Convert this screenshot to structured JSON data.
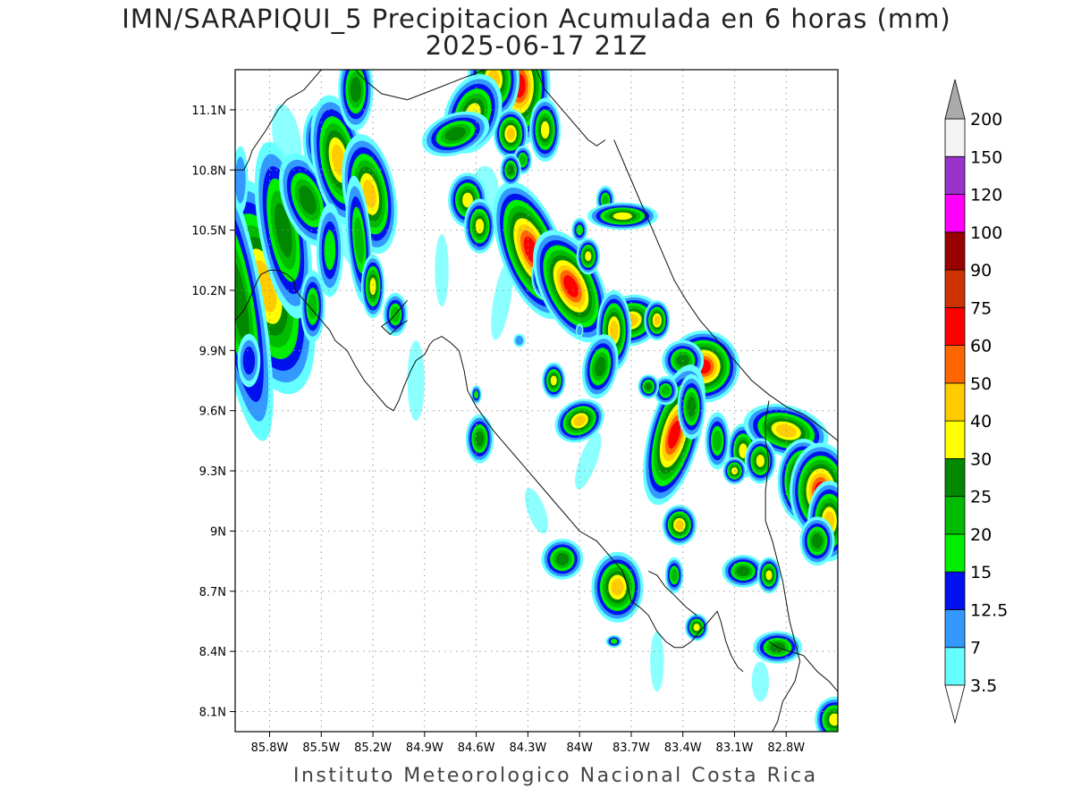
{
  "title": {
    "line1": "IMN/SARAPIQUI_5 Precipitacion Acumulada en 6 horas (mm)",
    "line2": "2025-06-17 21Z"
  },
  "footer": "Instituto Meteorologico Nacional Costa Rica",
  "map": {
    "lon_range": [
      -86.0,
      -82.5
    ],
    "lat_range": [
      8.0,
      11.3
    ],
    "lon_ticks": [
      {
        "value": -85.8,
        "label": "85.8W"
      },
      {
        "value": -85.5,
        "label": "85.5W"
      },
      {
        "value": -85.2,
        "label": "85.2W"
      },
      {
        "value": -84.9,
        "label": "84.9W"
      },
      {
        "value": -84.6,
        "label": "84.6W"
      },
      {
        "value": -84.3,
        "label": "84.3W"
      },
      {
        "value": -84.0,
        "label": "84W"
      },
      {
        "value": -83.7,
        "label": "83.7W"
      },
      {
        "value": -83.4,
        "label": "83.4W"
      },
      {
        "value": -83.1,
        "label": "83.1W"
      },
      {
        "value": -82.8,
        "label": "82.8W"
      }
    ],
    "lat_ticks": [
      {
        "value": 8.1,
        "label": "8.1N"
      },
      {
        "value": 8.4,
        "label": "8.4N"
      },
      {
        "value": 8.7,
        "label": "8.7N"
      },
      {
        "value": 9.0,
        "label": "9N"
      },
      {
        "value": 9.3,
        "label": "9.3N"
      },
      {
        "value": 9.6,
        "label": "9.6N"
      },
      {
        "value": 9.9,
        "label": "9.9N"
      },
      {
        "value": 10.2,
        "label": "10.2N"
      },
      {
        "value": 10.5,
        "label": "10.5N"
      },
      {
        "value": 10.8,
        "label": "10.8N"
      },
      {
        "value": 11.1,
        "label": "11.1N"
      }
    ],
    "grid": true
  },
  "legend": {
    "labels": [
      "3.5",
      "7",
      "12.5",
      "15",
      "20",
      "25",
      "30",
      "40",
      "50",
      "60",
      "75",
      "90",
      "100",
      "120",
      "150",
      "200"
    ],
    "colors": [
      "#66ffff",
      "#3399ff",
      "#0011ee",
      "#00ee00",
      "#00bb00",
      "#008800",
      "#ffff00",
      "#ffcc00",
      "#ff6600",
      "#ff0000",
      "#cc3300",
      "#990000",
      "#ff00ff",
      "#9933cc",
      "#f4f4f4",
      "#aaaaaa"
    ]
  },
  "precip_cells": [
    {
      "lon": -85.83,
      "lat": 10.22,
      "rx": 0.1,
      "ry": 0.22,
      "rot": -15,
      "level": 40
    },
    {
      "lon": -85.98,
      "lat": 10.15,
      "rx": 0.07,
      "ry": 0.35,
      "rot": -10,
      "level": 25
    },
    {
      "lon": -85.72,
      "lat": 10.5,
      "rx": 0.07,
      "ry": 0.22,
      "rot": -10,
      "level": 25
    },
    {
      "lon": -85.97,
      "lat": 10.75,
      "rx": 0.04,
      "ry": 0.15,
      "rot": 0,
      "level": 7
    },
    {
      "lon": -85.92,
      "lat": 9.85,
      "rx": 0.05,
      "ry": 0.1,
      "rot": 0,
      "level": 12.5
    },
    {
      "lon": -85.58,
      "lat": 10.65,
      "rx": 0.07,
      "ry": 0.12,
      "rot": -20,
      "level": 25
    },
    {
      "lon": -85.5,
      "lat": 10.95,
      "rx": 0.06,
      "ry": 0.1,
      "rot": 0,
      "level": 20
    },
    {
      "lon": -85.4,
      "lat": 10.85,
      "rx": 0.06,
      "ry": 0.13,
      "rot": -10,
      "level": 40
    },
    {
      "lon": -85.22,
      "lat": 10.68,
      "rx": 0.06,
      "ry": 0.12,
      "rot": -10,
      "level": 40
    },
    {
      "lon": -85.3,
      "lat": 11.2,
      "rx": 0.05,
      "ry": 0.1,
      "rot": 0,
      "level": 25
    },
    {
      "lon": -85.28,
      "lat": 10.45,
      "rx": 0.04,
      "ry": 0.18,
      "rot": -5,
      "level": 20
    },
    {
      "lon": -85.2,
      "lat": 10.22,
      "rx": 0.03,
      "ry": 0.07,
      "rot": 0,
      "level": 30
    },
    {
      "lon": -85.07,
      "lat": 10.08,
      "rx": 0.04,
      "ry": 0.06,
      "rot": 0,
      "level": 20
    },
    {
      "lon": -85.55,
      "lat": 10.12,
      "rx": 0.04,
      "ry": 0.1,
      "rot": 0,
      "level": 20
    },
    {
      "lon": -85.45,
      "lat": 10.4,
      "rx": 0.05,
      "ry": 0.15,
      "rot": 0,
      "level": 15
    },
    {
      "lon": -84.35,
      "lat": 11.22,
      "rx": 0.06,
      "ry": 0.1,
      "rot": 0,
      "level": 60
    },
    {
      "lon": -84.5,
      "lat": 11.25,
      "rx": 0.06,
      "ry": 0.08,
      "rot": 0,
      "level": 40
    },
    {
      "lon": -84.4,
      "lat": 10.98,
      "rx": 0.04,
      "ry": 0.05,
      "rot": 0,
      "level": 40
    },
    {
      "lon": -84.62,
      "lat": 11.08,
      "rx": 0.07,
      "ry": 0.09,
      "rot": 20,
      "level": 30
    },
    {
      "lon": -84.72,
      "lat": 10.98,
      "rx": 0.1,
      "ry": 0.05,
      "rot": -20,
      "level": 25
    },
    {
      "lon": -84.2,
      "lat": 11.0,
      "rx": 0.04,
      "ry": 0.07,
      "rot": 0,
      "level": 30
    },
    {
      "lon": -84.33,
      "lat": 10.85,
      "rx": 0.03,
      "ry": 0.04,
      "rot": 0,
      "level": 20
    },
    {
      "lon": -84.65,
      "lat": 10.65,
      "rx": 0.05,
      "ry": 0.06,
      "rot": 0,
      "level": 30
    },
    {
      "lon": -84.58,
      "lat": 10.52,
      "rx": 0.04,
      "ry": 0.06,
      "rot": 0,
      "level": 30
    },
    {
      "lon": -84.45,
      "lat": 10.55,
      "rx": 0.03,
      "ry": 0.05,
      "rot": 0,
      "level": 20
    },
    {
      "lon": -84.28,
      "lat": 10.4,
      "rx": 0.06,
      "ry": 0.12,
      "rot": -20,
      "level": 60
    },
    {
      "lon": -84.19,
      "lat": 10.27,
      "rx": 0.03,
      "ry": 0.04,
      "rot": 0,
      "level": 60
    },
    {
      "lon": -84.05,
      "lat": 10.22,
      "rx": 0.06,
      "ry": 0.1,
      "rot": -25,
      "level": 60
    },
    {
      "lon": -83.95,
      "lat": 10.37,
      "rx": 0.03,
      "ry": 0.04,
      "rot": 0,
      "level": 30
    },
    {
      "lon": -84.0,
      "lat": 10.5,
      "rx": 0.03,
      "ry": 0.04,
      "rot": 0,
      "level": 15
    },
    {
      "lon": -83.85,
      "lat": 10.65,
      "rx": 0.03,
      "ry": 0.04,
      "rot": 0,
      "level": 20
    },
    {
      "lon": -83.75,
      "lat": 10.57,
      "rx": 0.09,
      "ry": 0.03,
      "rot": 0,
      "level": 30
    },
    {
      "lon": -83.7,
      "lat": 10.05,
      "rx": 0.07,
      "ry": 0.05,
      "rot": -20,
      "level": 40
    },
    {
      "lon": -83.8,
      "lat": 10.0,
      "rx": 0.04,
      "ry": 0.08,
      "rot": 0,
      "level": 40
    },
    {
      "lon": -83.55,
      "lat": 10.05,
      "rx": 0.03,
      "ry": 0.04,
      "rot": 0,
      "level": 40
    },
    {
      "lon": -83.88,
      "lat": 9.82,
      "rx": 0.05,
      "ry": 0.08,
      "rot": 10,
      "level": 25
    },
    {
      "lon": -83.28,
      "lat": 9.82,
      "rx": 0.07,
      "ry": 0.06,
      "rot": 0,
      "level": 60
    },
    {
      "lon": -83.4,
      "lat": 9.85,
      "rx": 0.06,
      "ry": 0.05,
      "rot": 0,
      "level": 25
    },
    {
      "lon": -83.45,
      "lat": 9.48,
      "rx": 0.05,
      "ry": 0.12,
      "rot": 15,
      "level": 60
    },
    {
      "lon": -83.35,
      "lat": 9.62,
      "rx": 0.04,
      "ry": 0.08,
      "rot": 0,
      "level": 25
    },
    {
      "lon": -83.2,
      "lat": 9.45,
      "rx": 0.04,
      "ry": 0.08,
      "rot": 0,
      "level": 20
    },
    {
      "lon": -83.05,
      "lat": 9.4,
      "rx": 0.04,
      "ry": 0.06,
      "rot": 0,
      "level": 30
    },
    {
      "lon": -82.8,
      "lat": 9.5,
      "rx": 0.1,
      "ry": 0.05,
      "rot": 15,
      "level": 40
    },
    {
      "lon": -82.7,
      "lat": 9.25,
      "rx": 0.05,
      "ry": 0.07,
      "rot": 0,
      "level": 60
    },
    {
      "lon": -82.6,
      "lat": 9.2,
      "rx": 0.06,
      "ry": 0.08,
      "rot": 0,
      "level": 60
    },
    {
      "lon": -82.55,
      "lat": 9.05,
      "rx": 0.05,
      "ry": 0.08,
      "rot": 0,
      "level": 40
    },
    {
      "lon": -82.62,
      "lat": 8.95,
      "rx": 0.05,
      "ry": 0.06,
      "rot": 0,
      "level": 25
    },
    {
      "lon": -82.95,
      "lat": 9.35,
      "rx": 0.04,
      "ry": 0.05,
      "rot": 0,
      "level": 30
    },
    {
      "lon": -83.1,
      "lat": 9.3,
      "rx": 0.03,
      "ry": 0.03,
      "rot": 0,
      "level": 30
    },
    {
      "lon": -83.5,
      "lat": 9.7,
      "rx": 0.04,
      "ry": 0.04,
      "rot": 0,
      "level": 20
    },
    {
      "lon": -83.6,
      "lat": 9.72,
      "rx": 0.03,
      "ry": 0.03,
      "rot": 0,
      "level": 25
    },
    {
      "lon": -84.0,
      "lat": 9.55,
      "rx": 0.06,
      "ry": 0.04,
      "rot": -30,
      "level": 40
    },
    {
      "lon": -84.15,
      "lat": 9.75,
      "rx": 0.03,
      "ry": 0.04,
      "rot": 0,
      "level": 30
    },
    {
      "lon": -84.58,
      "lat": 9.46,
      "rx": 0.04,
      "ry": 0.06,
      "rot": 0,
      "level": 25
    },
    {
      "lon": -84.6,
      "lat": 9.68,
      "rx": 0.02,
      "ry": 0.03,
      "rot": 0,
      "level": 15
    },
    {
      "lon": -83.42,
      "lat": 9.03,
      "rx": 0.04,
      "ry": 0.04,
      "rot": 0,
      "level": 40
    },
    {
      "lon": -83.45,
      "lat": 8.78,
      "rx": 0.03,
      "ry": 0.05,
      "rot": 0,
      "level": 20
    },
    {
      "lon": -83.78,
      "lat": 8.72,
      "rx": 0.06,
      "ry": 0.07,
      "rot": 0,
      "level": 40
    },
    {
      "lon": -84.1,
      "lat": 8.86,
      "rx": 0.06,
      "ry": 0.05,
      "rot": 0,
      "level": 25
    },
    {
      "lon": -83.32,
      "lat": 8.52,
      "rx": 0.03,
      "ry": 0.03,
      "rot": 0,
      "level": 30
    },
    {
      "lon": -83.05,
      "lat": 8.8,
      "rx": 0.06,
      "ry": 0.04,
      "rot": 0,
      "level": 25
    },
    {
      "lon": -82.9,
      "lat": 8.78,
      "rx": 0.03,
      "ry": 0.04,
      "rot": 0,
      "level": 30
    },
    {
      "lon": -82.85,
      "lat": 8.42,
      "rx": 0.07,
      "ry": 0.04,
      "rot": 0,
      "level": 25
    },
    {
      "lon": -82.52,
      "lat": 8.06,
      "rx": 0.05,
      "ry": 0.05,
      "rot": 0,
      "level": 30
    },
    {
      "lon": -83.8,
      "lat": 8.45,
      "rx": 0.03,
      "ry": 0.02,
      "rot": 0,
      "level": 15
    },
    {
      "lon": -84.35,
      "lat": 9.95,
      "rx": 0.03,
      "ry": 0.03,
      "rot": 0,
      "level": 7
    },
    {
      "lon": -84.0,
      "lat": 10.0,
      "rx": 0.02,
      "ry": 0.03,
      "rot": 0,
      "level": 7
    },
    {
      "lon": -84.4,
      "lat": 10.8,
      "rx": 0.03,
      "ry": 0.04,
      "rot": 0,
      "level": 25
    }
  ],
  "light_cells": [
    {
      "lon": -85.7,
      "lat": 10.95,
      "rx": 0.08,
      "ry": 0.18,
      "rot": -10
    },
    {
      "lon": -85.35,
      "lat": 10.65,
      "rx": 0.12,
      "ry": 0.35,
      "rot": -10
    },
    {
      "lon": -85.85,
      "lat": 10.0,
      "rx": 0.08,
      "ry": 0.3,
      "rot": -5
    },
    {
      "lon": -84.95,
      "lat": 9.75,
      "rx": 0.05,
      "ry": 0.2,
      "rot": 0
    },
    {
      "lon": -84.55,
      "lat": 10.7,
      "rx": 0.08,
      "ry": 0.12,
      "rot": 0
    },
    {
      "lon": -84.45,
      "lat": 10.15,
      "rx": 0.05,
      "ry": 0.2,
      "rot": 10
    },
    {
      "lon": -84.25,
      "lat": 9.1,
      "rx": 0.05,
      "ry": 0.12,
      "rot": -20
    },
    {
      "lon": -83.55,
      "lat": 8.35,
      "rx": 0.04,
      "ry": 0.15,
      "rot": 0
    },
    {
      "lon": -83.95,
      "lat": 9.35,
      "rx": 0.05,
      "ry": 0.15,
      "rot": 20
    },
    {
      "lon": -82.95,
      "lat": 8.25,
      "rx": 0.05,
      "ry": 0.1,
      "rot": 0
    },
    {
      "lon": -84.8,
      "lat": 10.3,
      "rx": 0.04,
      "ry": 0.18,
      "rot": 0
    },
    {
      "lon": -83.55,
      "lat": 9.3,
      "rx": 0.05,
      "ry": 0.08,
      "rot": 0
    }
  ],
  "coastlines": [
    [
      [
        -86.0,
        10.05
      ],
      [
        -85.95,
        10.1
      ],
      [
        -85.92,
        10.15
      ],
      [
        -85.87,
        10.25
      ],
      [
        -85.85,
        10.28
      ],
      [
        -85.8,
        10.3
      ],
      [
        -85.75,
        10.3
      ],
      [
        -85.7,
        10.28
      ],
      [
        -85.66,
        10.25
      ],
      [
        -85.65,
        10.2
      ],
      [
        -85.6,
        10.15
      ],
      [
        -85.55,
        10.1
      ],
      [
        -85.5,
        10.05
      ],
      [
        -85.45,
        10.0
      ],
      [
        -85.42,
        9.95
      ],
      [
        -85.35,
        9.9
      ],
      [
        -85.3,
        9.82
      ],
      [
        -85.25,
        9.75
      ],
      [
        -85.2,
        9.7
      ],
      [
        -85.12,
        9.62
      ],
      [
        -85.08,
        9.6
      ],
      [
        -85.05,
        9.65
      ],
      [
        -85.02,
        9.72
      ],
      [
        -84.98,
        9.8
      ],
      [
        -84.95,
        9.85
      ],
      [
        -84.9,
        9.88
      ],
      [
        -84.87,
        9.93
      ],
      [
        -84.85,
        9.95
      ],
      [
        -84.8,
        9.97
      ],
      [
        -84.75,
        9.94
      ],
      [
        -84.7,
        9.9
      ],
      [
        -84.67,
        9.8
      ],
      [
        -84.65,
        9.7
      ],
      [
        -84.6,
        9.62
      ],
      [
        -84.5,
        9.5
      ],
      [
        -84.4,
        9.4
      ],
      [
        -84.3,
        9.3
      ],
      [
        -84.2,
        9.2
      ],
      [
        -84.1,
        9.1
      ],
      [
        -84.0,
        9.0
      ],
      [
        -83.9,
        8.95
      ],
      [
        -83.8,
        8.85
      ],
      [
        -83.75,
        8.8
      ],
      [
        -83.72,
        8.72
      ],
      [
        -83.7,
        8.65
      ],
      [
        -83.65,
        8.62
      ],
      [
        -83.6,
        8.58
      ],
      [
        -83.55,
        8.5
      ],
      [
        -83.5,
        8.45
      ],
      [
        -83.45,
        8.42
      ],
      [
        -83.4,
        8.42
      ],
      [
        -83.35,
        8.45
      ],
      [
        -83.3,
        8.5
      ],
      [
        -83.25,
        8.55
      ],
      [
        -83.2,
        8.6
      ],
      [
        -83.18,
        8.55
      ],
      [
        -83.15,
        8.45
      ],
      [
        -83.12,
        8.38
      ],
      [
        -83.08,
        8.32
      ],
      [
        -83.05,
        8.3
      ]
    ],
    [
      [
        -83.8,
        10.95
      ],
      [
        -83.75,
        10.85
      ],
      [
        -83.7,
        10.75
      ],
      [
        -83.65,
        10.65
      ],
      [
        -83.6,
        10.55
      ],
      [
        -83.55,
        10.45
      ],
      [
        -83.5,
        10.35
      ],
      [
        -83.45,
        10.25
      ],
      [
        -83.38,
        10.15
      ],
      [
        -83.3,
        10.05
      ],
      [
        -83.2,
        9.95
      ],
      [
        -83.1,
        9.85
      ],
      [
        -83.0,
        9.75
      ],
      [
        -82.9,
        9.68
      ],
      [
        -82.8,
        9.62
      ],
      [
        -82.7,
        9.58
      ],
      [
        -82.6,
        9.52
      ],
      [
        -82.5,
        9.45
      ]
    ],
    [
      [
        -85.3,
        11.3
      ],
      [
        -85.25,
        11.25
      ],
      [
        -85.15,
        11.18
      ],
      [
        -85.0,
        11.15
      ],
      [
        -84.85,
        11.2
      ],
      [
        -84.7,
        11.25
      ],
      [
        -84.55,
        11.3
      ]
    ],
    [
      [
        -84.25,
        11.3
      ],
      [
        -84.2,
        11.2
      ],
      [
        -84.1,
        11.1
      ],
      [
        -84.0,
        11.0
      ],
      [
        -83.95,
        10.95
      ],
      [
        -83.9,
        10.92
      ],
      [
        -83.85,
        10.95
      ]
    ],
    [
      [
        -82.9,
        9.65
      ],
      [
        -82.92,
        9.55
      ],
      [
        -82.92,
        9.45
      ],
      [
        -82.9,
        9.35
      ],
      [
        -82.92,
        9.2
      ],
      [
        -82.92,
        9.05
      ],
      [
        -82.88,
        8.95
      ],
      [
        -82.85,
        8.85
      ],
      [
        -82.82,
        8.75
      ],
      [
        -82.8,
        8.65
      ],
      [
        -82.78,
        8.55
      ],
      [
        -82.75,
        8.45
      ],
      [
        -82.72,
        8.35
      ],
      [
        -82.75,
        8.25
      ],
      [
        -82.82,
        8.15
      ],
      [
        -82.85,
        8.05
      ],
      [
        -82.88,
        8.0
      ]
    ],
    [
      [
        -85.5,
        11.3
      ],
      [
        -85.55,
        11.25
      ],
      [
        -85.6,
        11.2
      ],
      [
        -85.7,
        11.15
      ],
      [
        -85.75,
        11.1
      ],
      [
        -85.82,
        11.0
      ],
      [
        -85.86,
        10.95
      ],
      [
        -85.9,
        10.9
      ],
      [
        -85.92,
        10.85
      ],
      [
        -85.95,
        10.8
      ],
      [
        -86.0,
        10.8
      ]
    ],
    [
      [
        -85.0,
        10.15
      ],
      [
        -85.05,
        10.1
      ],
      [
        -85.1,
        10.05
      ],
      [
        -85.15,
        10.02
      ],
      [
        -85.1,
        9.98
      ],
      [
        -85.05,
        10.02
      ],
      [
        -85.0,
        10.05
      ]
    ],
    [
      [
        -83.6,
        8.8
      ],
      [
        -83.55,
        8.78
      ],
      [
        -83.5,
        8.72
      ],
      [
        -83.45,
        8.68
      ],
      [
        -83.38,
        8.62
      ],
      [
        -83.32,
        8.58
      ]
    ],
    [
      [
        -82.9,
        8.45
      ],
      [
        -82.85,
        8.42
      ],
      [
        -82.78,
        8.4
      ],
      [
        -82.7,
        8.38
      ],
      [
        -82.62,
        8.3
      ],
      [
        -82.55,
        8.25
      ],
      [
        -82.5,
        8.2
      ]
    ]
  ]
}
